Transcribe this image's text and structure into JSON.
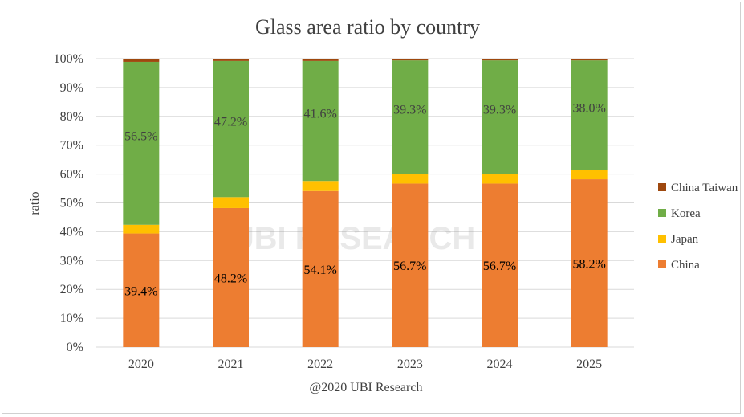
{
  "chart_data": {
    "type": "bar",
    "stacked": true,
    "title": "Glass area ratio by country",
    "xlabel": "@2020 UBI Research",
    "ylabel": "ratio",
    "ylim": [
      0,
      100
    ],
    "yticks": [
      "0%",
      "10%",
      "20%",
      "30%",
      "40%",
      "50%",
      "60%",
      "70%",
      "80%",
      "90%",
      "100%"
    ],
    "categories": [
      "2020",
      "2021",
      "2022",
      "2023",
      "2024",
      "2025"
    ],
    "series": [
      {
        "name": "China",
        "color": "#ED7D31",
        "values": [
          39.4,
          48.2,
          54.1,
          56.7,
          56.7,
          58.2
        ],
        "labels": [
          "39.4%",
          "48.2%",
          "54.1%",
          "56.7%",
          "56.7%",
          "58.2%"
        ]
      },
      {
        "name": "Japan",
        "color": "#FFC000",
        "values": [
          3.0,
          3.8,
          3.5,
          3.4,
          3.4,
          3.2
        ]
      },
      {
        "name": "Korea",
        "color": "#70AD47",
        "values": [
          56.5,
          47.2,
          41.6,
          39.3,
          39.3,
          38.0
        ],
        "labels": [
          "56.5%",
          "47.2%",
          "41.6%",
          "39.3%",
          "39.3%",
          "38.0%"
        ]
      },
      {
        "name": "China Taiwan",
        "color": "#9E480E",
        "values": [
          1.1,
          0.8,
          0.8,
          0.6,
          0.6,
          0.6
        ]
      }
    ],
    "legend": "right",
    "grid": true,
    "watermark": "UBI RESEARCH"
  }
}
